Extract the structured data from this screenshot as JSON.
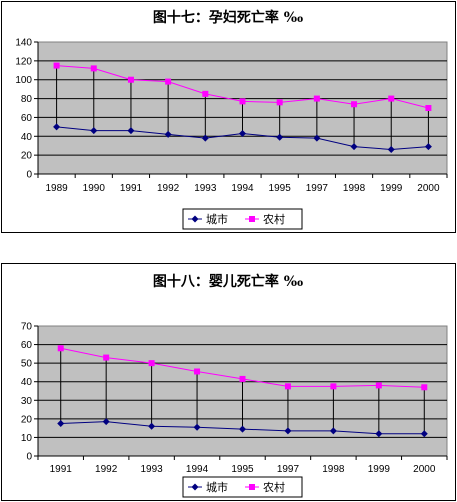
{
  "chart_data": [
    {
      "type": "line",
      "title": "图十七：孕妇死亡率 ‰",
      "categories": [
        "1989",
        "1990",
        "1991",
        "1992",
        "1993",
        "1994",
        "1995",
        "1997",
        "1998",
        "1999",
        "2000"
      ],
      "ylim": [
        0,
        140
      ],
      "yticks": [
        0,
        20,
        40,
        60,
        80,
        100,
        120,
        140
      ],
      "grid": true,
      "high_low_lines": true,
      "legend_position": "bottom",
      "series": [
        {
          "name": "城市",
          "color": "#000080",
          "marker": "diamond",
          "values": [
            50,
            46,
            46,
            42,
            38,
            43,
            39,
            38,
            29,
            26,
            29
          ]
        },
        {
          "name": "农村",
          "color": "#ff00ff",
          "marker": "square",
          "values": [
            115,
            112,
            100,
            98,
            85,
            77,
            76,
            80,
            74,
            80,
            70
          ]
        }
      ]
    },
    {
      "type": "line",
      "title": "图十八：婴儿死亡率 ‰",
      "categories": [
        "1991",
        "1992",
        "1993",
        "1994",
        "1995",
        "1997",
        "1998",
        "1999",
        "2000"
      ],
      "ylim": [
        0,
        70
      ],
      "yticks": [
        0,
        10,
        20,
        30,
        40,
        50,
        60,
        70
      ],
      "grid": true,
      "high_low_lines": true,
      "legend_position": "bottom",
      "series": [
        {
          "name": "城市",
          "color": "#000080",
          "marker": "diamond",
          "values": [
            17.5,
            18.5,
            16,
            15.5,
            14.5,
            13.5,
            13.5,
            12,
            12
          ]
        },
        {
          "name": "农村",
          "color": "#ff00ff",
          "marker": "square",
          "values": [
            58,
            53,
            50,
            45.5,
            41.5,
            37.5,
            37.5,
            38,
            37
          ]
        }
      ]
    }
  ]
}
